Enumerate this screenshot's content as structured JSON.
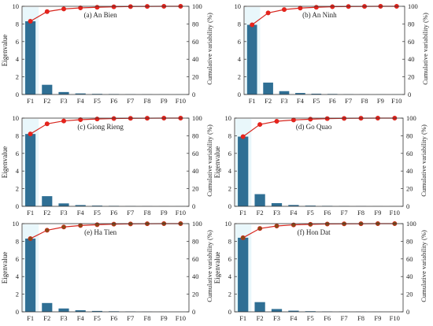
{
  "figure": {
    "colors": {
      "bar_main": "#2f6f94",
      "bar_highlight": "#cfeef6",
      "line": "#d7261e",
      "marker_fill": "#e8221b",
      "marker_fill_alt": "#8b4a16"
    }
  },
  "chart_data": [
    {
      "type": "bar",
      "panel_title": "(a) An Bien",
      "categories": [
        "F1",
        "F2",
        "F3",
        "F4",
        "F5",
        "F6",
        "F7",
        "F8",
        "F9",
        "F10"
      ],
      "series": [
        {
          "name": "Eigenvalue",
          "type": "bar",
          "axis": "left",
          "values": [
            8.3,
            1.1,
            0.28,
            0.12,
            0.07,
            0.05,
            0.03,
            0.02,
            0.01,
            0.01
          ]
        },
        {
          "name": "Cumulative variability (%)",
          "type": "line",
          "axis": "right",
          "values": [
            83,
            94,
            97,
            98.2,
            98.9,
            99.4,
            99.7,
            99.9,
            100,
            100
          ]
        }
      ],
      "ylabel": "Eigenvalue",
      "ylabel_right": "Cumulative variability (%)",
      "ylim": [
        0,
        10
      ],
      "ylim_right": [
        0,
        100
      ],
      "yticks": [
        "0",
        "2",
        "4",
        "6",
        "8",
        "10"
      ],
      "yticks_right": [
        "0",
        "20",
        "40",
        "60",
        "80",
        "100"
      ],
      "grid": false,
      "marker_style": "red"
    },
    {
      "type": "bar",
      "panel_title": "(b) An Ninh",
      "categories": [
        "F1",
        "F2",
        "F3",
        "F4",
        "F5",
        "F6",
        "F7",
        "F8",
        "F9",
        "F10"
      ],
      "series": [
        {
          "name": "Eigenvalue",
          "type": "bar",
          "axis": "left",
          "values": [
            7.9,
            1.35,
            0.38,
            0.17,
            0.09,
            0.06,
            0.03,
            0.02,
            0.01,
            0.01
          ]
        },
        {
          "name": "Cumulative variability (%)",
          "type": "line",
          "axis": "right",
          "values": [
            79,
            92.5,
            96.3,
            98,
            98.9,
            99.5,
            99.8,
            99.9,
            100,
            100
          ]
        }
      ],
      "ylabel": "",
      "ylabel_right": "Cumulative variability (%)",
      "ylim": [
        0,
        10
      ],
      "ylim_right": [
        0,
        100
      ],
      "yticks": [
        "0",
        "2",
        "4",
        "6",
        "8",
        "10"
      ],
      "yticks_right": [
        "0",
        "20",
        "40",
        "60",
        "80",
        "100"
      ],
      "grid": false,
      "marker_style": "red"
    },
    {
      "type": "bar",
      "panel_title": "(c) Giong Rieng",
      "categories": [
        "F1",
        "F2",
        "F3",
        "F4",
        "F5",
        "F6",
        "F7",
        "F8",
        "F9",
        "F10"
      ],
      "series": [
        {
          "name": "Eigenvalue",
          "type": "bar",
          "axis": "left",
          "values": [
            8.2,
            1.15,
            0.33,
            0.14,
            0.08,
            0.05,
            0.03,
            0.02,
            0.01,
            0.01
          ]
        },
        {
          "name": "Cumulative variability (%)",
          "type": "line",
          "axis": "right",
          "values": [
            82,
            93.5,
            96.8,
            98.2,
            99,
            99.5,
            99.8,
            99.9,
            100,
            100
          ]
        }
      ],
      "ylabel": "Eigenvalue",
      "ylabel_right": "Cumulative variability (%)",
      "ylim": [
        0,
        10
      ],
      "ylim_right": [
        0,
        100
      ],
      "yticks": [
        "0",
        "2",
        "4",
        "6",
        "8",
        "10"
      ],
      "yticks_right": [
        "0",
        "20",
        "40",
        "60",
        "80",
        "100"
      ],
      "grid": false,
      "marker_style": "red"
    },
    {
      "type": "bar",
      "panel_title": "(d) Go Quao",
      "categories": [
        "F1",
        "F2",
        "F3",
        "F4",
        "F5",
        "F6",
        "F7",
        "F8",
        "F9",
        "F10"
      ],
      "series": [
        {
          "name": "Eigenvalue",
          "type": "bar",
          "axis": "left",
          "values": [
            7.9,
            1.38,
            0.36,
            0.15,
            0.08,
            0.05,
            0.03,
            0.02,
            0.01,
            0.01
          ]
        },
        {
          "name": "Cumulative variability (%)",
          "type": "line",
          "axis": "right",
          "values": [
            79,
            92.8,
            96.4,
            97.9,
            98.8,
            99.4,
            99.7,
            99.9,
            100,
            100
          ]
        }
      ],
      "ylabel": "Eigenvalue",
      "ylabel_right": "Cumulative variability (%)",
      "ylim": [
        0,
        10
      ],
      "ylim_right": [
        0,
        100
      ],
      "yticks": [
        "0",
        "2",
        "4",
        "6",
        "8",
        "10"
      ],
      "yticks_right": [
        "0",
        "20",
        "40",
        "60",
        "80",
        "100"
      ],
      "grid": false,
      "marker_style": "red"
    },
    {
      "type": "bar",
      "panel_title": "(e) Ha Tien",
      "categories": [
        "F1",
        "F2",
        "F3",
        "F4",
        "F5",
        "F6",
        "F7",
        "F8",
        "F9",
        "F10"
      ],
      "series": [
        {
          "name": "Eigenvalue",
          "type": "bar",
          "axis": "left",
          "values": [
            8.3,
            1.0,
            0.38,
            0.18,
            0.1,
            0.06,
            0.04,
            0.02,
            0.01,
            0.01
          ]
        },
        {
          "name": "Cumulative variability (%)",
          "type": "line",
          "axis": "right",
          "values": [
            83,
            92.5,
            96.2,
            97.9,
            98.8,
            99.4,
            99.7,
            99.9,
            100,
            100
          ]
        }
      ],
      "ylabel": "Eigenvalue",
      "ylabel_right": "Cumulative variability (%)",
      "ylim": [
        0,
        10
      ],
      "ylim_right": [
        0,
        100
      ],
      "yticks": [
        "0",
        "2",
        "4",
        "6",
        "8",
        "10"
      ],
      "yticks_right": [
        "0",
        "20",
        "40",
        "60",
        "80",
        "100"
      ],
      "grid": false,
      "marker_style": "brown"
    },
    {
      "type": "bar",
      "panel_title": "(f) Hon Dat",
      "categories": [
        "F1",
        "F2",
        "F3",
        "F4",
        "F5",
        "F6",
        "F7",
        "F8",
        "F9",
        "F10"
      ],
      "series": [
        {
          "name": "Eigenvalue",
          "type": "bar",
          "axis": "left",
          "values": [
            8.4,
            1.1,
            0.32,
            0.13,
            0.07,
            0.04,
            0.03,
            0.02,
            0.01,
            0.01
          ]
        },
        {
          "name": "Cumulative variability (%)",
          "type": "line",
          "axis": "right",
          "values": [
            84,
            94.5,
            97.3,
            98.6,
            99.2,
            99.6,
            99.8,
            99.9,
            100,
            100
          ]
        }
      ],
      "ylabel": "Eigenvalue",
      "ylabel_right": "Cumulative variability (%)",
      "ylim": [
        0,
        10
      ],
      "ylim_right": [
        0,
        100
      ],
      "yticks": [
        "0",
        "2",
        "4",
        "6",
        "8",
        "10"
      ],
      "yticks_right": [
        "0",
        "20",
        "40",
        "60",
        "80",
        "100"
      ],
      "grid": false,
      "marker_style": "brown"
    }
  ]
}
